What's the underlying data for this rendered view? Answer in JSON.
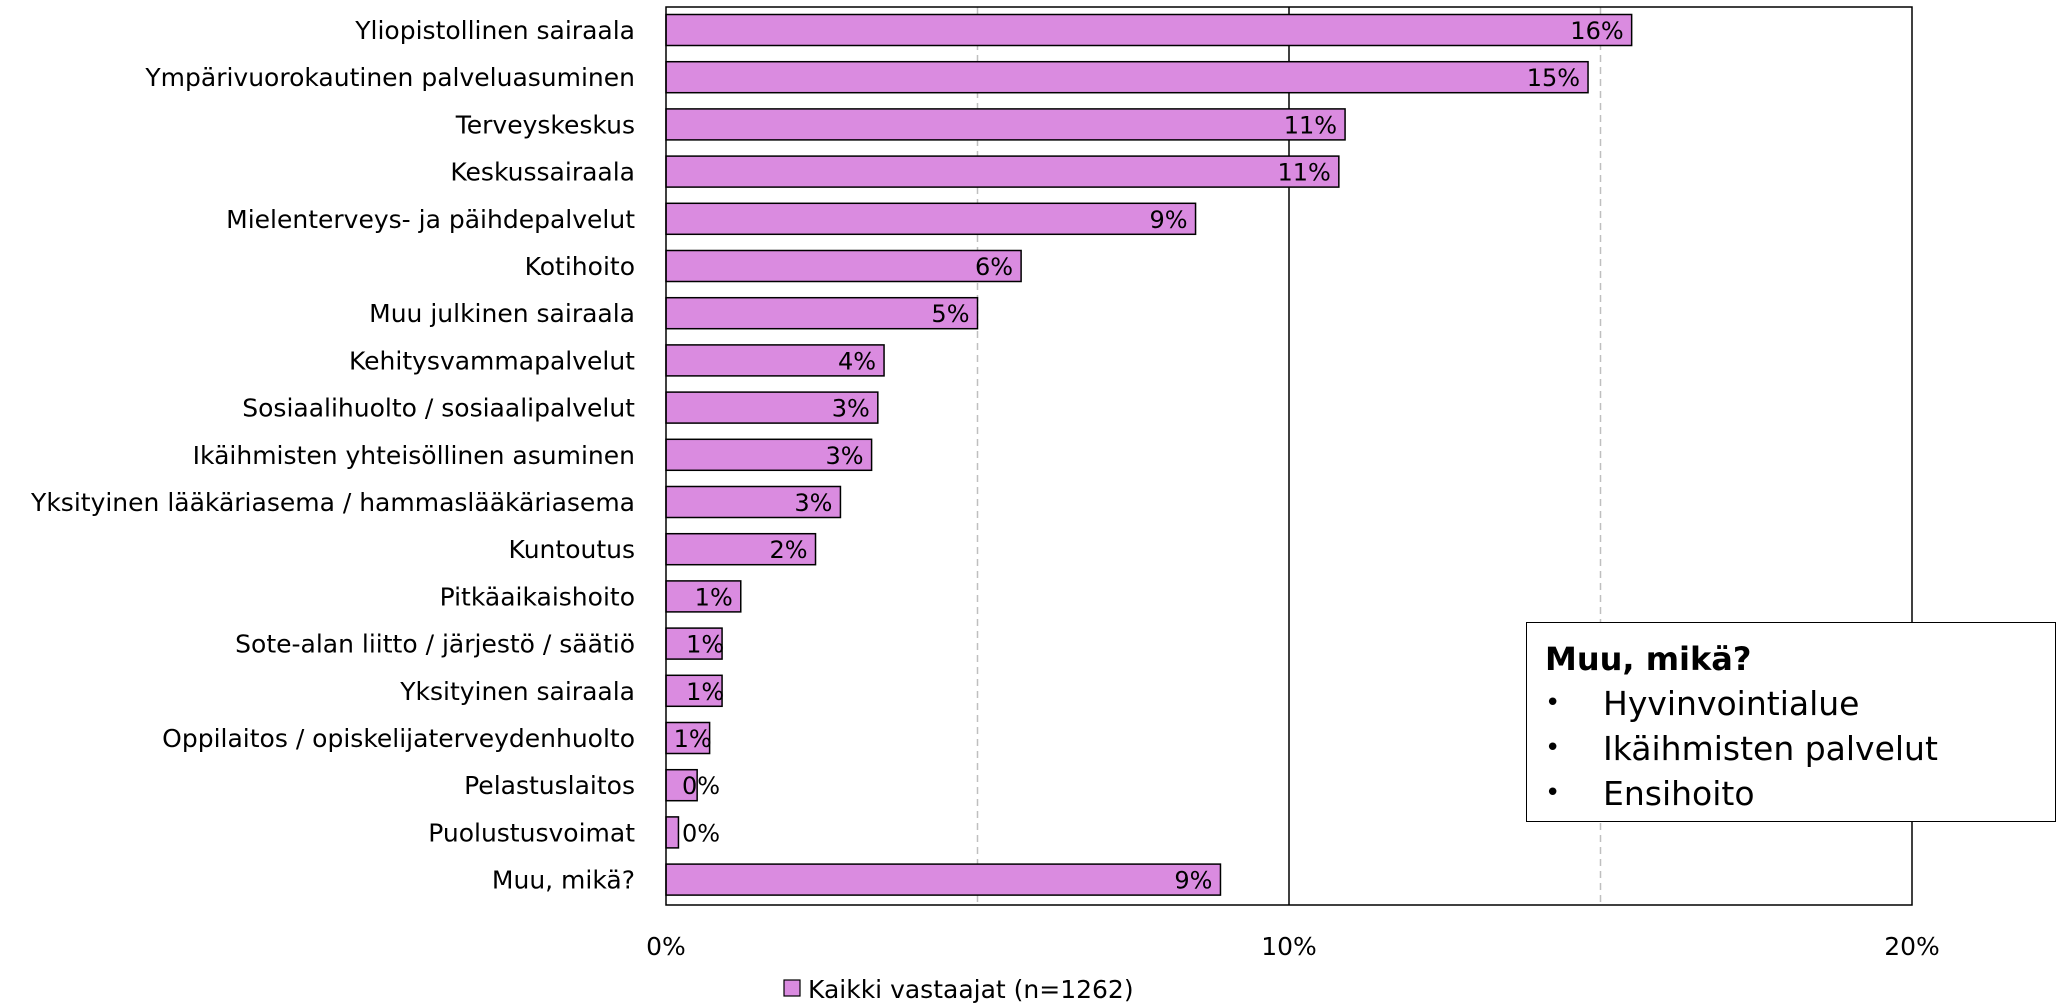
{
  "chart_data": {
    "type": "bar",
    "orientation": "horizontal",
    "categories": [
      "Yliopistollinen sairaala",
      "Ympärivuorokautinen palveluasuminen",
      "Terveyskeskus",
      "Keskussairaala",
      "Mielenterveys- ja päihdepalvelut",
      "Kotihoito",
      "Muu julkinen sairaala",
      "Kehitysvammapalvelut",
      "Sosiaalihuolto / sosiaalipalvelut",
      "Ikäihmisten yhteisöllinen asuminen",
      "Yksityinen lääkäriasema / hammaslääkäriasema",
      "Kuntoutus",
      "Pitkäaikaishoito",
      "Sote-alan liitto / järjestö / säätiö",
      "Yksityinen sairaala",
      "Oppilaitos / opiskelijaterveydenhuolto",
      "Pelastuslaitos",
      "Puolustusvoimat",
      "Muu, mikä?"
    ],
    "series": [
      {
        "name": "Kaikki vastaajat (n=1262)",
        "values": [
          15.5,
          14.8,
          10.9,
          10.8,
          8.5,
          5.7,
          5.0,
          3.5,
          3.4,
          3.3,
          2.8,
          2.4,
          1.2,
          0.9,
          0.9,
          0.7,
          0.5,
          0.2,
          8.9
        ],
        "labels": [
          "16%",
          "15%",
          "11%",
          "11%",
          "9%",
          "6%",
          "5%",
          "4%",
          "3%",
          "3%",
          "3%",
          "2%",
          "1%",
          "1%",
          "1%",
          "1%",
          "0%",
          "0%",
          "9%"
        ]
      }
    ],
    "xlim": [
      0,
      20
    ],
    "xticks": [
      0,
      10,
      20
    ],
    "xtick_labels": [
      "0%",
      "10%",
      "20%"
    ],
    "minor_gridlines": [
      5,
      15
    ],
    "grid": true,
    "legend_position": "bottom-center",
    "colors": {
      "bar_fill": "#DA8BE0",
      "bar_stroke": "#000000",
      "grid_major": "#000000",
      "grid_minor": "#BFBFBF"
    }
  },
  "note": {
    "title": "Muu, mikä?",
    "items": [
      "Hyvinvointialue",
      "Ikäihmisten palvelut",
      "Ensihoito"
    ]
  }
}
